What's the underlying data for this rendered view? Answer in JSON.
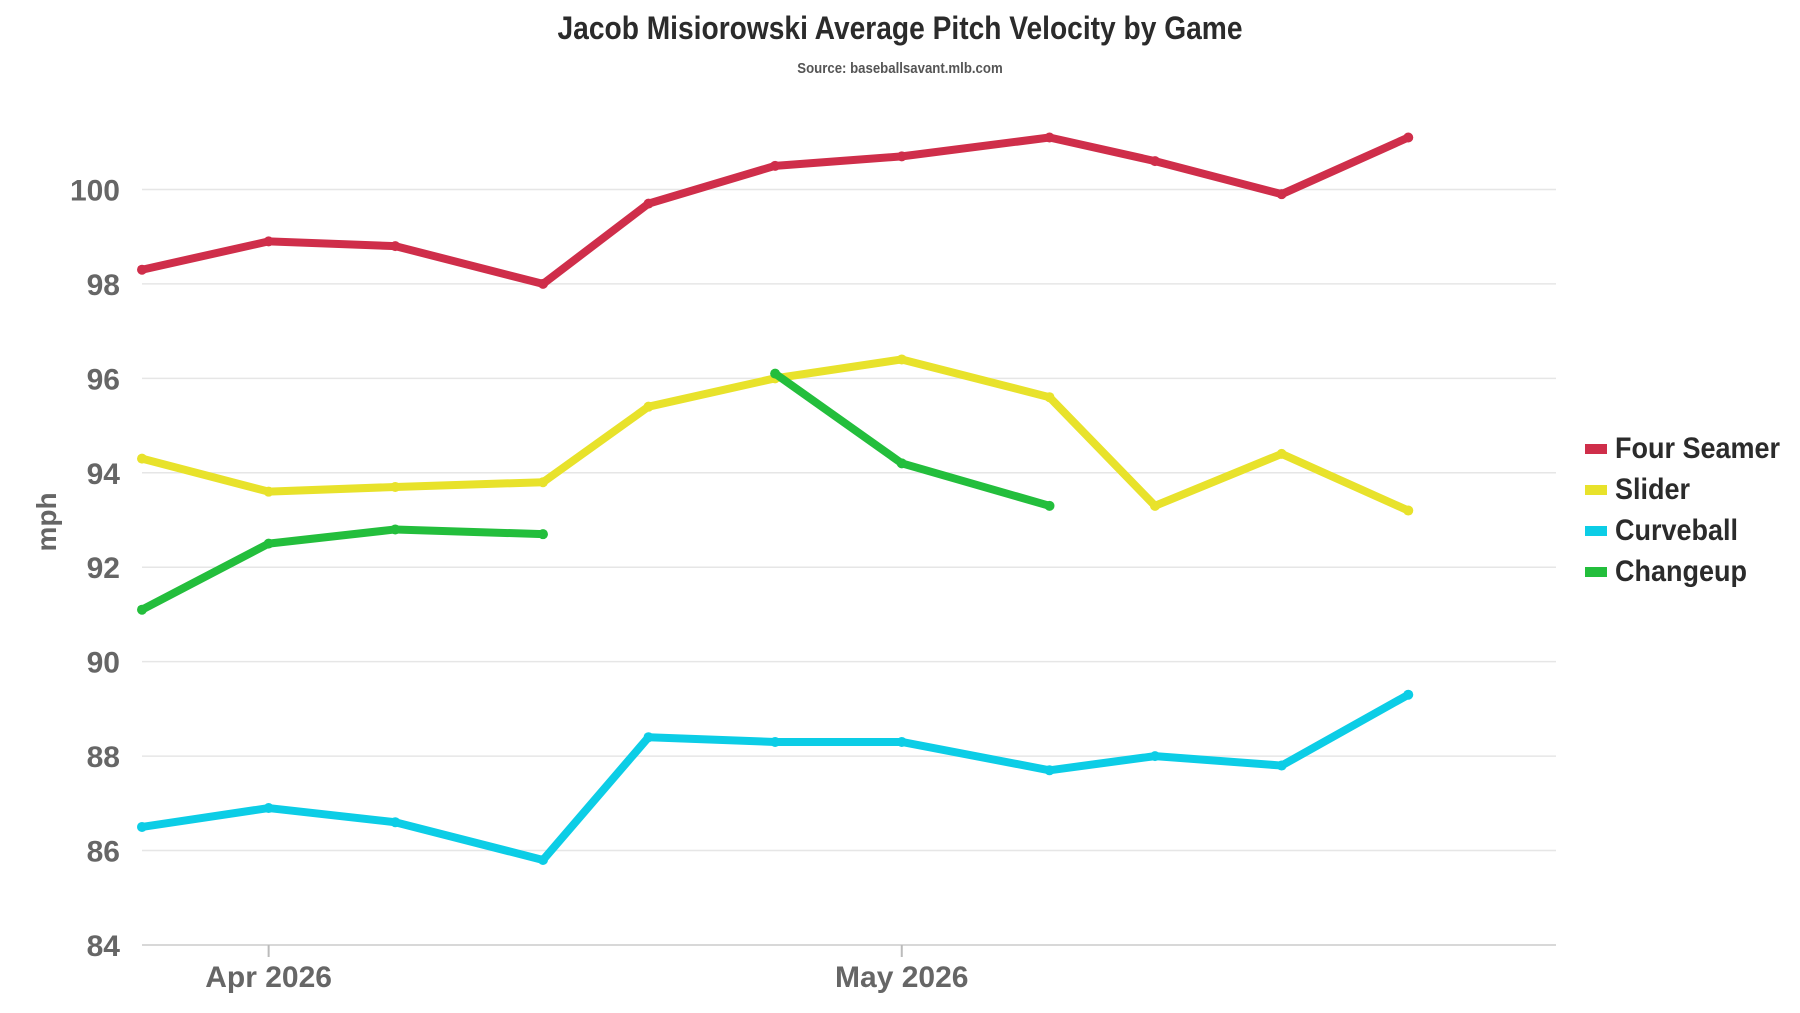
{
  "chart_data": {
    "type": "line",
    "title": "Jacob Misiorowski Average Pitch Velocity by Game",
    "subtitle": "Source: baseballsavant.mlb.com",
    "ylabel": "mph",
    "xlabel": "",
    "ylim": [
      84,
      102
    ],
    "yticks": [
      84,
      86,
      88,
      90,
      92,
      94,
      96,
      98,
      100
    ],
    "xticks": [
      {
        "label": "Apr 2026",
        "date": "2026-04-01"
      },
      {
        "label": "May 2026",
        "date": "2026-05-01"
      }
    ],
    "xlim": [
      "2026-03-26",
      "2026-06-01"
    ],
    "grid": true,
    "legend_position": "right",
    "x": [
      "2026-03-26",
      "2026-04-01",
      "2026-04-07",
      "2026-04-14",
      "2026-04-19",
      "2026-04-25",
      "2026-05-01",
      "2026-05-08",
      "2026-05-13",
      "2026-05-19",
      "2026-05-25"
    ],
    "series": [
      {
        "name": "Four Seamer",
        "color": "#cf2e4a",
        "values": [
          98.3,
          98.9,
          98.8,
          98.0,
          99.7,
          100.5,
          100.7,
          101.1,
          100.6,
          99.9,
          101.1
        ]
      },
      {
        "name": "Slider",
        "color": "#e8e22b",
        "values": [
          94.3,
          93.6,
          93.7,
          93.8,
          95.4,
          96.0,
          96.4,
          95.6,
          93.3,
          94.4,
          93.2
        ]
      },
      {
        "name": "Curveball",
        "color": "#0ccde6",
        "values": [
          86.5,
          86.9,
          86.6,
          85.8,
          88.4,
          88.3,
          88.3,
          87.7,
          88.0,
          87.8,
          89.3
        ]
      },
      {
        "name": "Changeup",
        "color": "#23be3c",
        "values": [
          91.1,
          92.5,
          92.8,
          92.7,
          null,
          96.1,
          94.2,
          93.3,
          null,
          null,
          null
        ]
      }
    ]
  }
}
